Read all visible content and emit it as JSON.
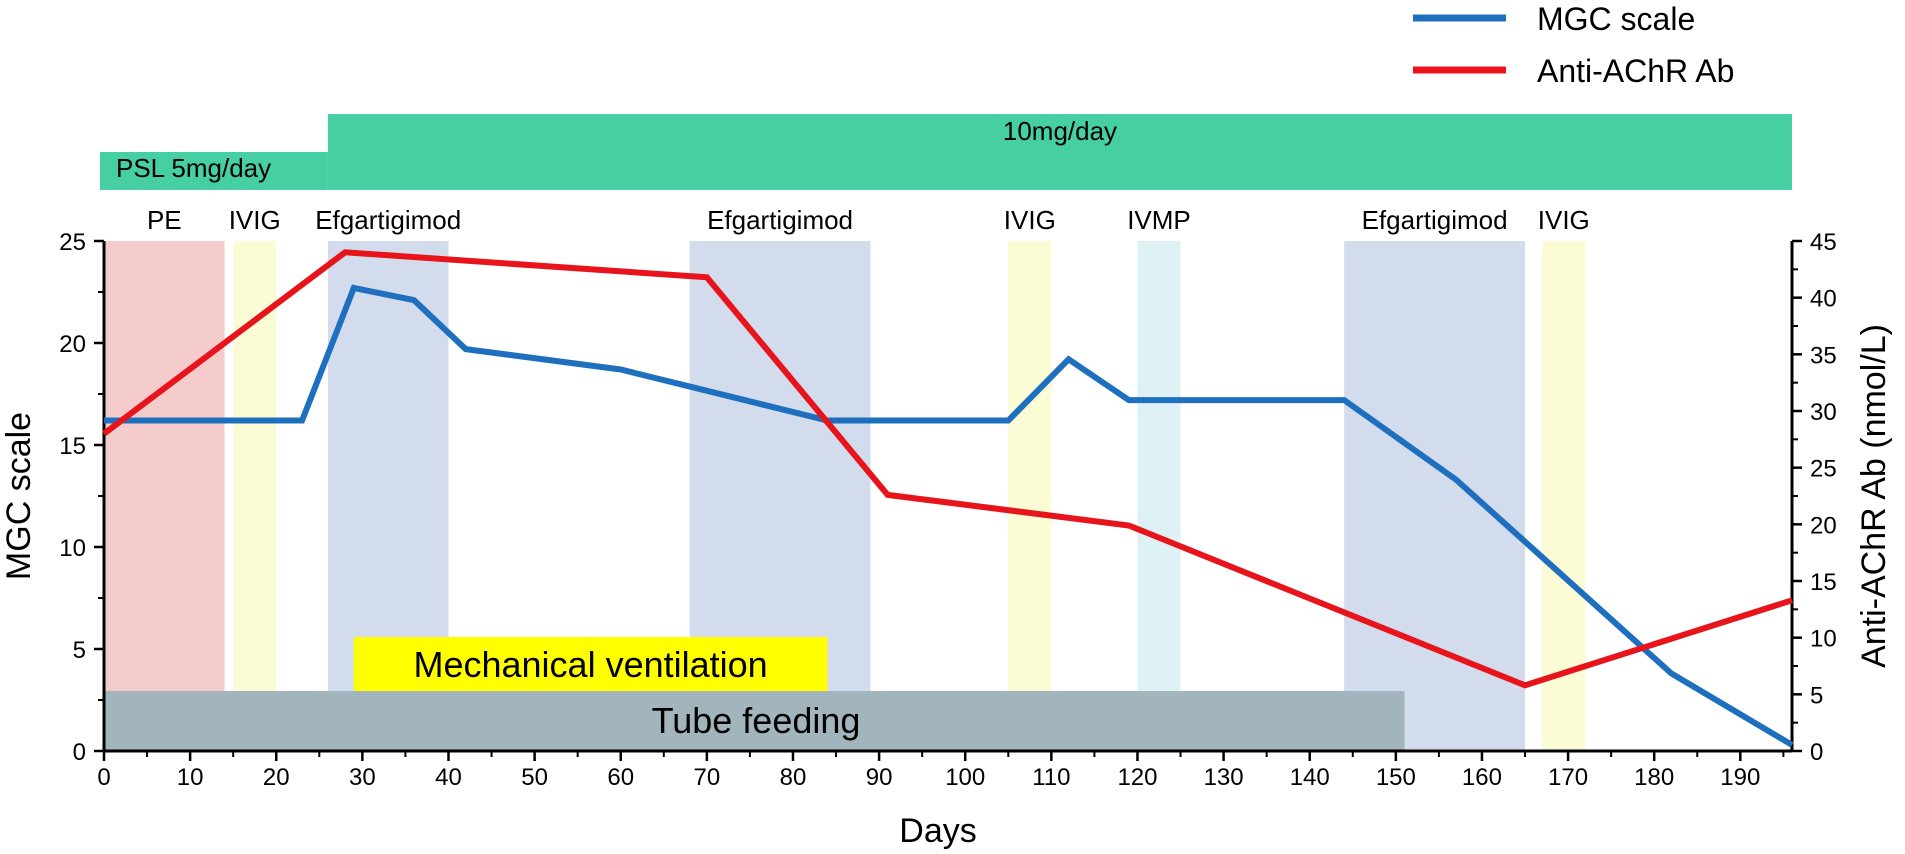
{
  "chart_data": {
    "type": "line",
    "x": {
      "label": "Days",
      "range": [
        0,
        196
      ],
      "ticks": [
        0,
        10,
        20,
        30,
        40,
        50,
        60,
        70,
        80,
        90,
        100,
        110,
        120,
        130,
        140,
        150,
        160,
        170,
        180,
        190
      ]
    },
    "y_left": {
      "label": "MGC scale",
      "range": [
        0,
        25
      ],
      "ticks": [
        0,
        5,
        10,
        15,
        20,
        25
      ]
    },
    "y_right": {
      "label": "Anti-AChR Ab (nmol/L)",
      "range": [
        0,
        45
      ],
      "ticks": [
        0,
        5,
        10,
        15,
        20,
        25,
        30,
        35,
        40,
        45
      ]
    },
    "legend": {
      "position": "top-right",
      "entries": [
        {
          "name": "MGC scale",
          "color": "#1f6fbf"
        },
        {
          "name": "Anti-AChR Ab",
          "color": "#e8141b"
        }
      ]
    },
    "series": [
      {
        "name": "MGC scale",
        "axis": "left",
        "color": "#1f6fbf",
        "points": [
          [
            0,
            16.2
          ],
          [
            23,
            16.2
          ],
          [
            29,
            22.7
          ],
          [
            36,
            22.1
          ],
          [
            42,
            19.7
          ],
          [
            60,
            18.7
          ],
          [
            84,
            16.2
          ],
          [
            105,
            16.2
          ],
          [
            112,
            19.2
          ],
          [
            119,
            17.2
          ],
          [
            144,
            17.2
          ],
          [
            157,
            13.3
          ],
          [
            182,
            3.8
          ],
          [
            196,
            0.3
          ]
        ]
      },
      {
        "name": "Anti-AChR Ab",
        "axis": "right",
        "color": "#e8141b",
        "points": [
          [
            0,
            28
          ],
          [
            28,
            44
          ],
          [
            70,
            41.8
          ],
          [
            91,
            22.6
          ],
          [
            119,
            19.9
          ],
          [
            165,
            5.8
          ],
          [
            196,
            13.3
          ]
        ]
      }
    ],
    "treatments": [
      {
        "label": "PE",
        "start": 0,
        "end": 14,
        "color": "#f5cccc"
      },
      {
        "label": "IVIG",
        "start": 15,
        "end": 20,
        "color": "#fbfbd6"
      },
      {
        "label": "Efgartigimod",
        "start": 26,
        "end": 40,
        "color": "#d3dcec"
      },
      {
        "label": "Efgartigimod",
        "start": 68,
        "end": 89,
        "color": "#d3dcec"
      },
      {
        "label": "IVIG",
        "start": 105,
        "end": 110,
        "color": "#fbfbd6"
      },
      {
        "label": "IVMP",
        "start": 120,
        "end": 125,
        "color": "#def2f5"
      },
      {
        "label": "Efgartigimod",
        "start": 144,
        "end": 165,
        "color": "#d3dcec"
      },
      {
        "label": "IVIG",
        "start": 167,
        "end": 172,
        "color": "#fbfbd6"
      }
    ],
    "psl": {
      "color": "#46cfa3",
      "segments": [
        {
          "label": "PSL 5mg/day",
          "start": 0,
          "end": 26
        },
        {
          "label": "10mg/day",
          "start": 26,
          "end": 196
        }
      ]
    },
    "support_bars": [
      {
        "label": "Mechanical ventilation",
        "start": 29,
        "end": 84,
        "color": "#ffff00"
      },
      {
        "label": "Tube feeding",
        "start": 0,
        "end": 151,
        "color": "#a2b5bd"
      }
    ]
  }
}
